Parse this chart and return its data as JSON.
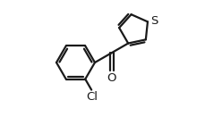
{
  "bg_color": "#ffffff",
  "line_color": "#1a1a1a",
  "line_width": 1.6,
  "figsize": [
    2.48,
    1.4
  ],
  "dpi": 100,
  "Cl_label": "Cl",
  "O_label": "O",
  "S_label": "S",
  "font_size_atom": 9.5
}
